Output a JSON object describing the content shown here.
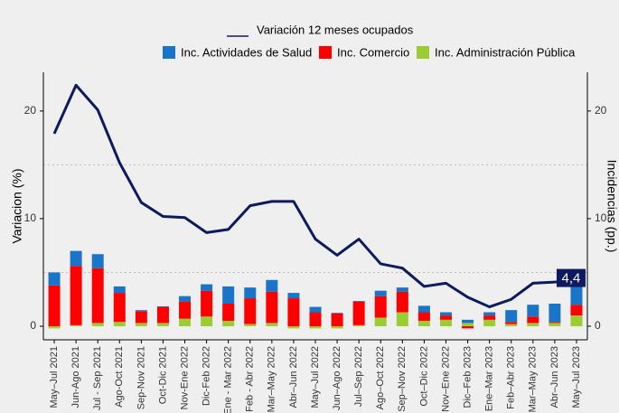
{
  "chart_data": {
    "type": "bar_line",
    "y_axis_label": "Variacion (%)",
    "y2_axis_label": "Incidencias (pp.)",
    "categories": [
      "May–Jul 2021",
      "Jun-Ago 2021",
      "Jul - Sep 2021",
      "Ago-Oct 2021",
      "Sep-Nov 2021",
      "Oct-Dic 2021",
      "Nov-Ene 2022",
      "Dic-Feb 2022",
      "Ene - Mar 2022",
      "Feb - Abr 2022",
      "Mar–May 2022",
      "Abr–Jun 2022",
      "May–Jul 2022",
      "Jun–Ago 2022",
      "Jul–Sep 2022",
      "Ago–Oct 2022",
      "Sep–Nov 2022",
      "Oct–Dic 2022",
      "Nov–Ene 2022",
      "Dic–Feb 2023",
      "Ene–Mar 2023",
      "Feb–Abr 2023",
      "Mar–May 2023",
      "Abr–Jun 2023",
      "May–Jul 2023"
    ],
    "series": [
      {
        "name": "Variación 12 meses ocupados",
        "kind": "line",
        "color": "#0d1b5e",
        "values": [
          17.9,
          22.4,
          20.1,
          15.2,
          11.5,
          10.2,
          10.1,
          8.7,
          9.0,
          11.2,
          11.6,
          11.6,
          8.1,
          6.6,
          8.1,
          5.8,
          5.4,
          3.7,
          4.0,
          2.7,
          1.8,
          2.5,
          4.0,
          4.1,
          4.4
        ],
        "annotation": "4,4"
      },
      {
        "name": "Inc. Actividades de Salud",
        "kind": "bar",
        "color": "#1a75c8",
        "axis": "y2",
        "values": [
          1.2,
          1.4,
          1.3,
          0.6,
          0.1,
          0.05,
          0.5,
          0.6,
          1.6,
          1.0,
          1.1,
          0.5,
          0.5,
          0.05,
          0.05,
          0.5,
          0.4,
          0.6,
          0.3,
          0.3,
          0.3,
          1.1,
          1.1,
          1.7,
          1.7
        ]
      },
      {
        "name": "Inc. Comercio",
        "kind": "bar",
        "color": "#ff0000",
        "axis": "y2",
        "values": [
          3.8,
          5.5,
          5.1,
          2.7,
          1.1,
          1.5,
          1.6,
          2.4,
          1.6,
          2.4,
          2.9,
          2.6,
          1.3,
          1.2,
          2.2,
          2.0,
          1.9,
          0.8,
          0.4,
          -0.2,
          0.4,
          0.2,
          0.6,
          0.1,
          1.0
        ]
      },
      {
        "name": "Inc. Administración Pública",
        "kind": "bar",
        "color": "#9acd32",
        "axis": "y2",
        "values": [
          -0.2,
          0.1,
          0.3,
          0.4,
          0.3,
          0.3,
          0.7,
          0.9,
          0.5,
          0.2,
          0.3,
          -0.2,
          -0.2,
          -0.2,
          0.1,
          0.8,
          1.3,
          0.5,
          0.6,
          0.3,
          0.6,
          0.2,
          0.3,
          0.3,
          1.0
        ]
      }
    ],
    "ylim": [
      -1.26,
      23.6
    ],
    "yticks": [
      0,
      10,
      20
    ],
    "y2lim": [
      -1.26,
      23.6
    ],
    "y2ticks": [
      0,
      10,
      20
    ],
    "minor_gridlines": [
      5,
      15
    ]
  }
}
